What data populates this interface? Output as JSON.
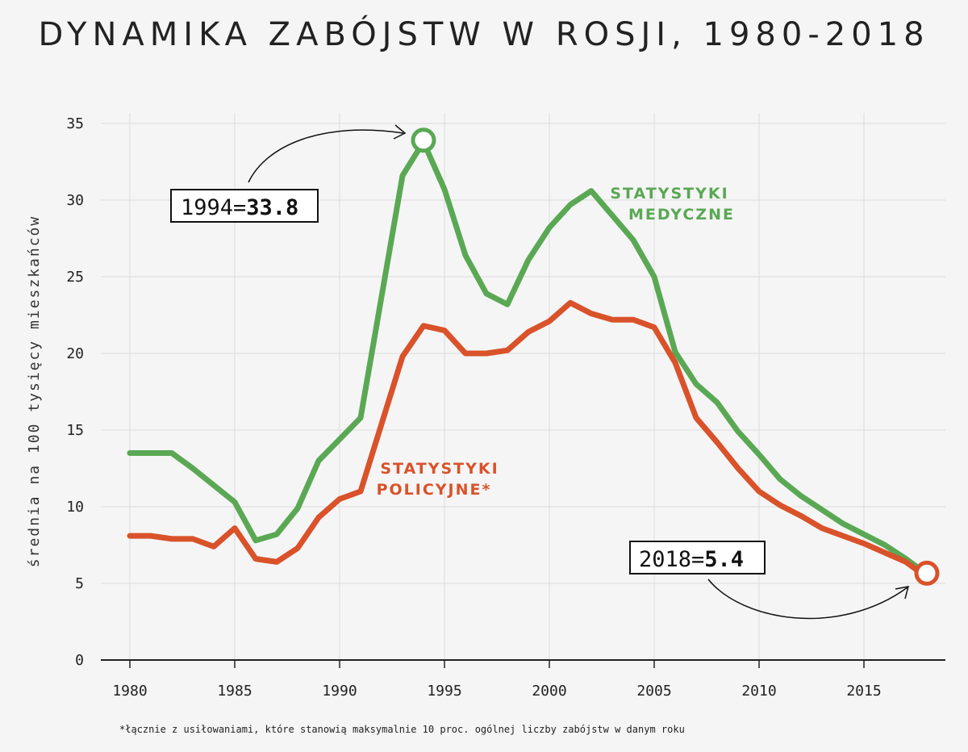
{
  "chart_data": {
    "type": "line",
    "title": "DYNAMIKA ZABÓJSTW W ROSJI, 1980-2018",
    "xlabel": "",
    "ylabel": "średnia na 100 tysięcy mieszkańców",
    "xlim": [
      1980,
      2018
    ],
    "ylim": [
      0,
      35
    ],
    "grid": true,
    "x_ticks": [
      "1980",
      "1985",
      "1990",
      "1995",
      "2000",
      "2005",
      "2010",
      "2015"
    ],
    "y_ticks": [
      "0",
      "5",
      "10",
      "15",
      "20",
      "25",
      "30",
      "35"
    ],
    "x": [
      1980,
      1981,
      1982,
      1983,
      1984,
      1985,
      1986,
      1987,
      1988,
      1989,
      1990,
      1991,
      1992,
      1993,
      1994,
      1995,
      1996,
      1997,
      1998,
      1999,
      2000,
      2001,
      2002,
      2003,
      2004,
      2005,
      2006,
      2007,
      2008,
      2009,
      2010,
      2011,
      2012,
      2013,
      2014,
      2015,
      2016,
      2017,
      2018
    ],
    "series": [
      {
        "name": "STATYSTYKI MEDYCZNE",
        "label_lines": [
          "STATYSTYKI",
          "MEDYCZNE"
        ],
        "color": "#5aa854",
        "values": [
          13.5,
          13.5,
          13.5,
          12.5,
          11.4,
          10.3,
          7.8,
          8.2,
          9.9,
          13.0,
          14.4,
          15.8,
          23.7,
          31.6,
          33.8,
          30.7,
          26.4,
          23.9,
          23.2,
          26.1,
          28.2,
          29.7,
          30.6,
          29.0,
          27.4,
          25.0,
          20.1,
          18.0,
          16.8,
          14.9,
          13.4,
          11.8,
          10.7,
          9.8,
          8.9,
          8.2,
          7.5,
          6.6,
          5.6
        ]
      },
      {
        "name": "STATYSTYKI POLICYJNE*",
        "label_lines": [
          "STATYSTYKI",
          "POLICYJNE*"
        ],
        "color": "#d9522a",
        "values": [
          8.1,
          8.1,
          7.9,
          7.9,
          7.4,
          8.6,
          6.6,
          6.4,
          7.3,
          9.3,
          10.5,
          11.0,
          15.4,
          19.8,
          21.8,
          21.5,
          20.0,
          20.0,
          20.2,
          21.4,
          22.1,
          23.3,
          22.6,
          22.2,
          22.2,
          21.7,
          19.4,
          15.8,
          14.2,
          12.5,
          11.0,
          10.1,
          9.4,
          8.6,
          8.1,
          7.6,
          7.0,
          6.4,
          5.4
        ]
      }
    ],
    "annotations": [
      {
        "prefix": "1994=",
        "value": "33.8"
      },
      {
        "prefix": "2018=",
        "value": "5.4"
      }
    ],
    "footnote": "*łącznie z usiłowaniami, które stanowią maksymalnie 10 proc. ogólnej liczby zabójstw w danym roku"
  }
}
